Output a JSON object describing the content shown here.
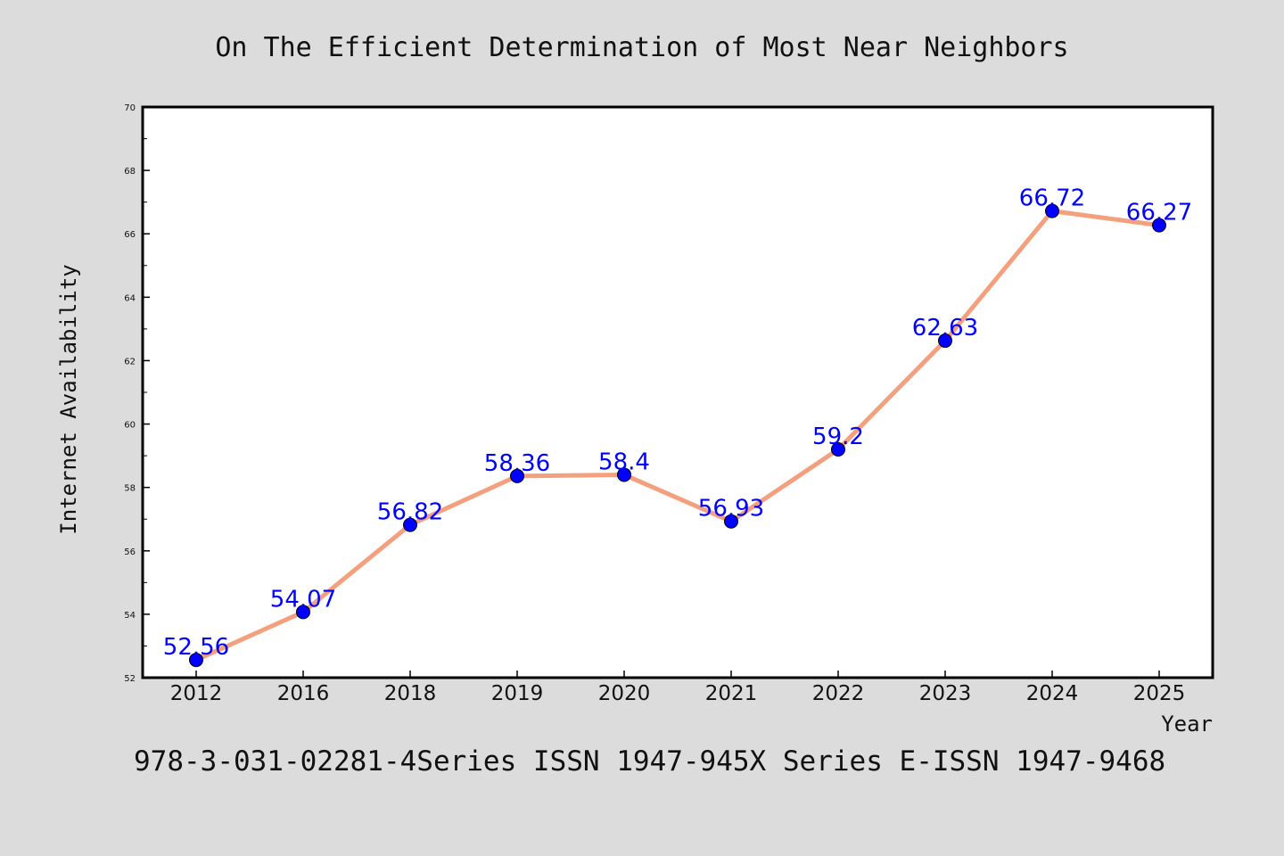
{
  "chart_data": {
    "type": "line",
    "title": "On The Efficient Determination of Most Near Neighbors",
    "footer": "978-3-031-02281-4Series ISSN 1947-945X Series E-ISSN 1947-9468",
    "xlabel": "Year",
    "ylabel": "Internet Availability",
    "categories": [
      "2012",
      "2016",
      "2018",
      "2019",
      "2020",
      "2021",
      "2022",
      "2023",
      "2024",
      "2025"
    ],
    "values": [
      52.56,
      54.07,
      56.82,
      58.36,
      58.4,
      56.93,
      59.2,
      62.63,
      66.72,
      66.27
    ],
    "data_labels": [
      "52.56",
      "54.07",
      "56.82",
      "58.36",
      "58.4",
      "56.93",
      "59.2",
      "62.63",
      "66.72",
      "66.27"
    ],
    "ylim": [
      52,
      70
    ],
    "yticks": [
      "52",
      "54",
      "56",
      "58",
      "60",
      "62",
      "64",
      "66",
      "68",
      "70"
    ],
    "grid": false,
    "colors": {
      "line": "#f4a07e",
      "marker": "#0000ff",
      "label": "#0000ff",
      "background": "#dcdcdc",
      "plot_bg": "#ffffff"
    }
  }
}
